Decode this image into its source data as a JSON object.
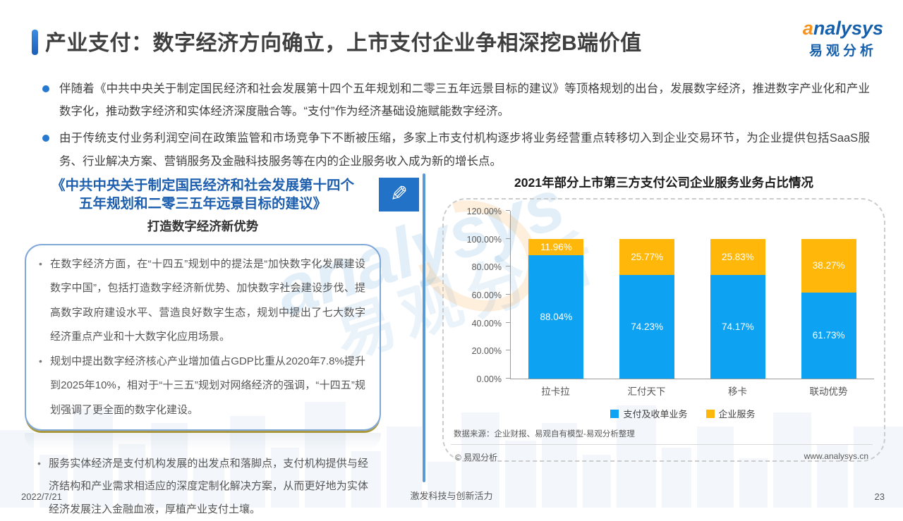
{
  "page": {
    "title": "产业支付：数字经济方向确立，上市支付企业争相深挖B端价值",
    "date": "2022/7/21",
    "footer_slogan": "激发科技与创新活力",
    "page_number": "23"
  },
  "logo": {
    "brand_a": "a",
    "brand_rest": "nalysys",
    "cn": "易观分析"
  },
  "icons": {
    "pencil": "✎"
  },
  "watermark": {
    "en": "analysys",
    "cn": "易观分析"
  },
  "bullets": [
    "伴随着《中共中央关于制定国民经济和社会发展第十四个五年规划和二零三五年远景目标的建议》等顶格规划的出台，发展数字经济，推进数字产业化和产业数字化，推动数字经济和实体经济深度融合等。“支付”作为经济基础设施赋能数字经济。",
    "由于传统支付业务利润空间在政策监管和市场竞争下不断被压缩，多家上市支付机构逐步将业务经营重点转移切入到企业交易环节，为企业提供包括SaaS服务、行业解决方案、营销服务及金融科技服务等在内的企业服务收入成为新的增长点。"
  ],
  "left_panel": {
    "doc_title_line1": "《中共中央关于制定国民经济和社会发展第十四个",
    "doc_title_line2": "五年规划和二零三五年远景目标的建议》",
    "doc_subtitle": "打造数字经济新优势",
    "box1_items": [
      "在数字经济方面，在“十四五”规划中的提法是“加快数字化发展建设数字中国”，包括打造数字经济新优势、加快数字社会建设步伐、提高数字政府建设水平、营造良好数字生态，规划中提出了七大数字经济重点产业和十大数字化应用场景。",
      "规划中提出数字经济核心产业增加值占GDP比重从2020年7.8%提升到2025年10%，相对于“十三五”规划对网络经济的强调，“十四五”规划强调了更全面的数字化建设。"
    ],
    "box2_items": [
      "服务实体经济是支付机构发展的出发点和落脚点，支付机构提供与经济结构和产业需求相适应的深度定制化解决方案，从而更好地为实体经济发展注入金融血液，厚植产业支付土壤。"
    ]
  },
  "chart": {
    "title": "2021年部分上市第三方支付公司企业服务业务占比情况",
    "source": "数据来源：企业财报、易观自有模型-易观分析整理",
    "copyright": "© 易观分析",
    "website": "www.analysys.cn"
  },
  "chart_data": {
    "type": "bar",
    "stacked": true,
    "title": "2021年部分上市第三方支付公司企业服务业务占比情况",
    "categories": [
      "拉卡拉",
      "汇付天下",
      "移卡",
      "联动优势"
    ],
    "series": [
      {
        "name": "支付及收单业务",
        "color": "#0da2f2",
        "values": [
          88.04,
          74.23,
          74.17,
          61.73
        ]
      },
      {
        "name": "企业服务",
        "color": "#ffb70a",
        "values": [
          11.96,
          25.77,
          25.83,
          38.27
        ]
      }
    ],
    "ylim": [
      0,
      120
    ],
    "ytick_step": 20,
    "value_suffix": "%",
    "grid": false,
    "legend_position": "bottom"
  }
}
